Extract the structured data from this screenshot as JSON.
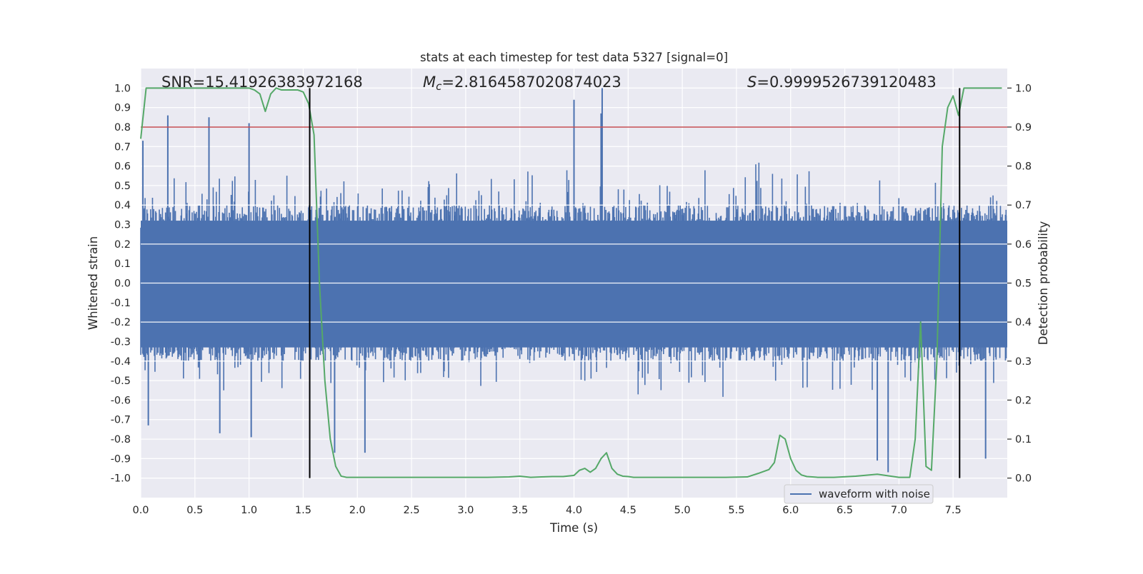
{
  "chart_data": {
    "type": "line",
    "title": "stats at each timestep for test data 5327 [signal=0]",
    "xlabel": "Time (s)",
    "ylabel_left": "Whitened strain",
    "ylabel_right": "Detection probability",
    "xlim": [
      0.0,
      8.0
    ],
    "ylim_left": [
      -1.1,
      1.1
    ],
    "ylim_right": [
      -0.05,
      1.05
    ],
    "x_ticks": [
      "0.0",
      "0.5",
      "1.0",
      "1.5",
      "2.0",
      "2.5",
      "3.0",
      "3.5",
      "4.0",
      "4.5",
      "5.0",
      "5.5",
      "6.0",
      "6.5",
      "7.0",
      "7.5"
    ],
    "y_ticks_left": [
      "1.0",
      "0.9",
      "0.8",
      "0.7",
      "0.6",
      "0.5",
      "0.4",
      "0.3",
      "0.2",
      "0.1",
      "0.0",
      "-0.1",
      "-0.2",
      "-0.3",
      "-0.4",
      "-0.5",
      "-0.6",
      "-0.7",
      "-0.8",
      "-0.9",
      "-1.0"
    ],
    "y_ticks_right": [
      "1.0",
      "0.9",
      "0.8",
      "0.7",
      "0.6",
      "0.5",
      "0.4",
      "0.3",
      "0.2",
      "0.1",
      "0.0"
    ],
    "grid": true,
    "legend_position": "bottom-right",
    "annotations": {
      "snr": "SNR=15.41926383972168",
      "mc_symbol": "M",
      "mc_sub": "c",
      "mc_value": "=2.8164587020874023",
      "s_symbol": "S",
      "s_value": "=0.9999526739120483"
    },
    "threshold_left": 0.8,
    "vertical_lines_x": [
      1.56,
      7.56
    ],
    "colors": {
      "strain": "#4c72b0",
      "probability": "#55a868",
      "threshold": "#c44e52",
      "vertical": "#000000",
      "background": "#eaeaf2",
      "grid": "#ffffff"
    },
    "series": [
      {
        "name": "waveform with noise",
        "kind": "strain",
        "note_envelope_x": [
          0.0,
          8.0
        ],
        "typical_amplitude": 0.4,
        "peaks": [
          {
            "x": 0.02,
            "y": 0.73
          },
          {
            "x": 0.25,
            "y": 0.86
          },
          {
            "x": 0.63,
            "y": 0.85
          },
          {
            "x": 1.0,
            "y": 0.82
          },
          {
            "x": 4.0,
            "y": 0.94
          },
          {
            "x": 4.26,
            "y": 1.0
          },
          {
            "x": 4.25,
            "y": 0.87
          },
          {
            "x": 0.07,
            "y": -0.73
          },
          {
            "x": 0.73,
            "y": -0.77
          },
          {
            "x": 1.02,
            "y": -0.79
          },
          {
            "x": 1.79,
            "y": -0.87
          },
          {
            "x": 2.07,
            "y": -0.87
          },
          {
            "x": 6.8,
            "y": -0.91
          },
          {
            "x": 6.9,
            "y": -0.97
          },
          {
            "x": 7.8,
            "y": -0.9
          }
        ]
      },
      {
        "name": "",
        "kind": "probability",
        "x": [
          0.0,
          0.05,
          0.1,
          0.2,
          0.3,
          0.4,
          0.5,
          0.6,
          0.7,
          0.8,
          0.9,
          1.0,
          1.05,
          1.1,
          1.15,
          1.2,
          1.25,
          1.3,
          1.35,
          1.4,
          1.45,
          1.5,
          1.55,
          1.6,
          1.65,
          1.7,
          1.75,
          1.8,
          1.85,
          1.9,
          2.0,
          2.2,
          2.4,
          2.6,
          2.8,
          3.0,
          3.2,
          3.4,
          3.5,
          3.6,
          3.7,
          3.8,
          3.9,
          4.0,
          4.05,
          4.1,
          4.15,
          4.2,
          4.25,
          4.3,
          4.35,
          4.4,
          4.45,
          4.5,
          4.55,
          4.6,
          4.7,
          4.8,
          5.0,
          5.2,
          5.4,
          5.6,
          5.7,
          5.8,
          5.85,
          5.9,
          5.95,
          6.0,
          6.05,
          6.1,
          6.15,
          6.2,
          6.25,
          6.3,
          6.4,
          6.6,
          6.8,
          7.0,
          7.05,
          7.1,
          7.15,
          7.2,
          7.25,
          7.3,
          7.35,
          7.4,
          7.45,
          7.5,
          7.55,
          7.6,
          7.65,
          7.7,
          7.75,
          7.8,
          7.85,
          7.9,
          7.95
        ],
        "values": [
          0.87,
          1.0,
          1.0,
          1.0,
          1.0,
          1.0,
          1.0,
          1.0,
          1.0,
          1.0,
          1.0,
          1.0,
          0.995,
          0.985,
          0.94,
          0.985,
          1.0,
          0.995,
          0.995,
          0.995,
          0.995,
          0.99,
          0.96,
          0.88,
          0.5,
          0.25,
          0.1,
          0.03,
          0.005,
          0.002,
          0.002,
          0.002,
          0.002,
          0.002,
          0.002,
          0.002,
          0.002,
          0.003,
          0.005,
          0.002,
          0.003,
          0.004,
          0.004,
          0.007,
          0.02,
          0.025,
          0.015,
          0.025,
          0.05,
          0.065,
          0.025,
          0.01,
          0.005,
          0.004,
          0.002,
          0.002,
          0.002,
          0.002,
          0.002,
          0.002,
          0.002,
          0.003,
          0.012,
          0.022,
          0.04,
          0.11,
          0.1,
          0.05,
          0.02,
          0.008,
          0.004,
          0.003,
          0.002,
          0.002,
          0.002,
          0.005,
          0.01,
          0.002,
          0.002,
          0.002,
          0.1,
          0.4,
          0.03,
          0.02,
          0.3,
          0.85,
          0.95,
          0.98,
          0.93,
          1.0,
          1.0,
          1.0,
          1.0,
          1.0,
          1.0,
          1.0,
          1.0
        ]
      }
    ],
    "legend": [
      {
        "label": "waveform with noise"
      }
    ]
  }
}
